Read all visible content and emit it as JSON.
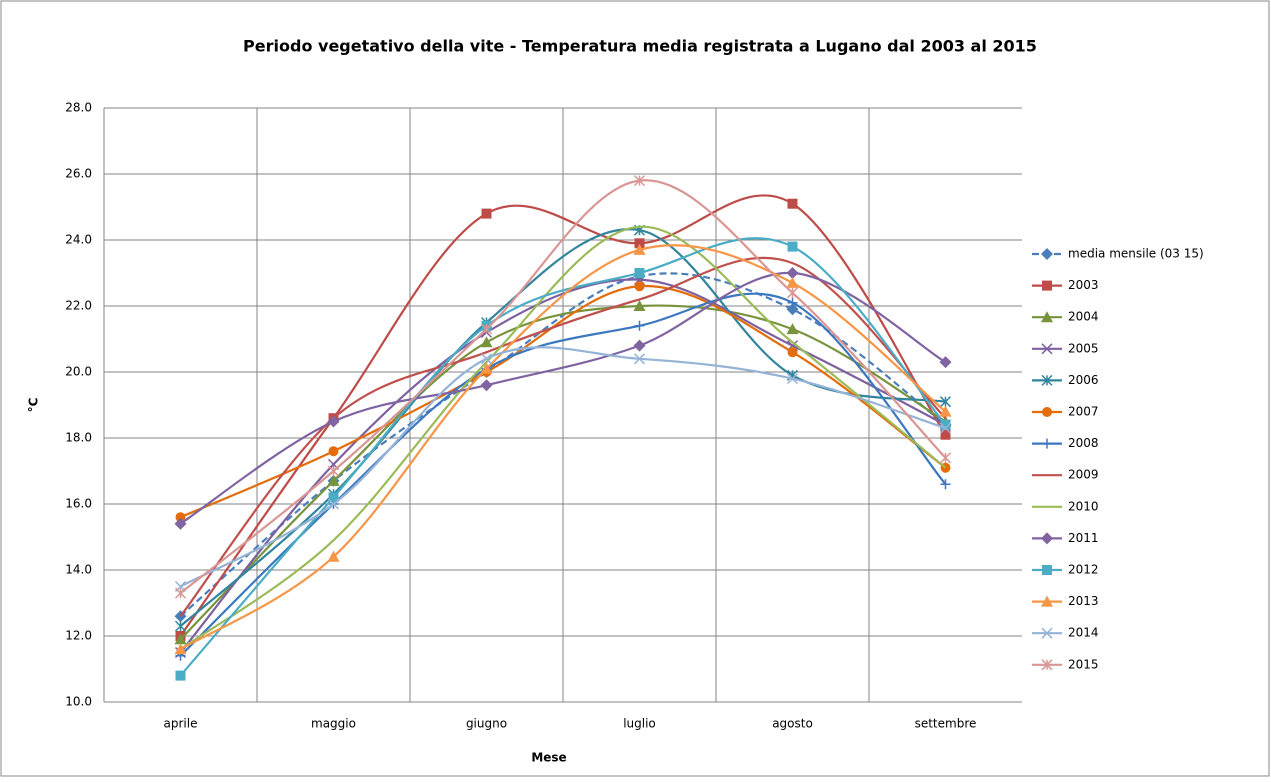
{
  "chart_data": {
    "type": "line",
    "title": "Periodo vegetativo della vite - Temperatura media registrata a Lugano dal 2003 al 2015",
    "x_label": "Mese",
    "y_label": "°C",
    "categories": [
      "aprile",
      "maggio",
      "giugno",
      "luglio",
      "agosto",
      "settembre"
    ],
    "ylim": [
      10,
      28
    ],
    "yticks": [
      {
        "value": 10,
        "label": "10.0"
      },
      {
        "value": 12,
        "label": "12.0"
      },
      {
        "value": 14,
        "label": "14.0"
      },
      {
        "value": 16,
        "label": "16.0"
      },
      {
        "value": 18,
        "label": "18.0"
      },
      {
        "value": 20,
        "label": "20.0"
      },
      {
        "value": 22,
        "label": "22.0"
      },
      {
        "value": 24,
        "label": "24.0"
      },
      {
        "value": 26,
        "label": "26.0"
      },
      {
        "value": 28,
        "label": "28.0"
      }
    ],
    "grid": true,
    "smooth": true,
    "legend": "right",
    "series": [
      {
        "name": "media mensile (03 15)",
        "color": "#4a7ebb",
        "marker": "diamond",
        "dashed": true,
        "values": [
          12.6,
          16.7,
          20.0,
          22.9,
          21.9,
          18.4
        ]
      },
      {
        "name": "2003",
        "color": "#be4b48",
        "marker": "square",
        "values": [
          12.0,
          18.6,
          24.8,
          23.9,
          25.1,
          18.1
        ]
      },
      {
        "name": "2004",
        "color": "#77933c",
        "marker": "triangle",
        "values": [
          11.9,
          16.7,
          20.9,
          22.0,
          21.3,
          18.5
        ]
      },
      {
        "name": "2005",
        "color": "#7d60a0",
        "marker": "x",
        "values": [
          11.5,
          17.2,
          21.2,
          22.8,
          20.8,
          18.4
        ]
      },
      {
        "name": "2006",
        "color": "#31859c",
        "marker": "star",
        "values": [
          12.3,
          16.3,
          21.5,
          24.3,
          19.9,
          19.1
        ]
      },
      {
        "name": "2007",
        "color": "#e46c0a",
        "marker": "circle",
        "values": [
          15.6,
          17.6,
          20.0,
          22.6,
          20.6,
          17.1
        ]
      },
      {
        "name": "2008",
        "color": "#3c78c0",
        "marker": "plus",
        "values": [
          11.4,
          16.0,
          20.1,
          21.4,
          22.1,
          16.6
        ]
      },
      {
        "name": "2009",
        "color": "#c0504d",
        "marker": "none",
        "values": [
          12.6,
          18.6,
          20.6,
          22.2,
          23.3,
          18.6
        ]
      },
      {
        "name": "2010",
        "color": "#9bbb59",
        "marker": "none",
        "values": [
          11.6,
          14.9,
          20.3,
          24.4,
          20.9,
          17.1
        ]
      },
      {
        "name": "2011",
        "color": "#8064a2",
        "marker": "diamond",
        "values": [
          15.4,
          18.5,
          19.6,
          20.8,
          23.0,
          20.3
        ]
      },
      {
        "name": "2012",
        "color": "#4bacc6",
        "marker": "square",
        "values": [
          10.8,
          16.2,
          21.4,
          23.0,
          23.8,
          18.4
        ]
      },
      {
        "name": "2013",
        "color": "#f79646",
        "marker": "triangle",
        "values": [
          11.6,
          14.4,
          20.1,
          23.7,
          22.7,
          18.8
        ]
      },
      {
        "name": "2014",
        "color": "#95b3d7",
        "marker": "x",
        "values": [
          13.5,
          16.0,
          20.4,
          20.4,
          19.8,
          18.3
        ]
      },
      {
        "name": "2015",
        "color": "#d99694",
        "marker": "star",
        "values": [
          13.3,
          17.0,
          21.3,
          25.8,
          22.4,
          17.4
        ]
      }
    ]
  }
}
